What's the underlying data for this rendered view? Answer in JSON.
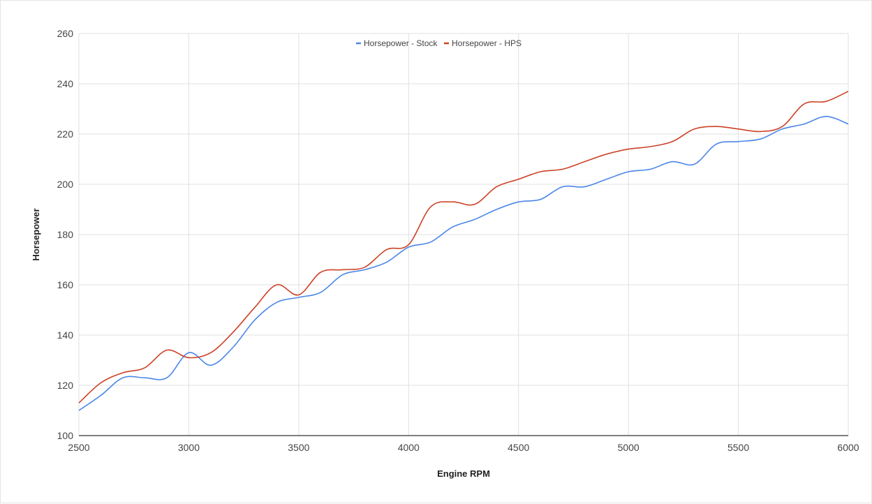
{
  "chart_data": {
    "type": "line",
    "xlabel": "Engine RPM",
    "ylabel": "Horsepower",
    "xlim": [
      2500,
      6000
    ],
    "ylim": [
      100,
      260
    ],
    "xticks": [
      2500,
      3000,
      3500,
      4000,
      4500,
      5000,
      5500,
      6000
    ],
    "yticks": [
      100,
      120,
      140,
      160,
      180,
      200,
      220,
      240,
      260
    ],
    "grid": true,
    "legend_position": "top-center",
    "x": [
      2500,
      2600,
      2700,
      2800,
      2900,
      3000,
      3100,
      3200,
      3300,
      3400,
      3500,
      3600,
      3700,
      3800,
      3900,
      4000,
      4100,
      4200,
      4300,
      4400,
      4500,
      4600,
      4700,
      4800,
      4900,
      5000,
      5100,
      5200,
      5300,
      5400,
      5500,
      5600,
      5700,
      5800,
      5900,
      6000
    ],
    "series": [
      {
        "name": "Horsepower - Stock",
        "color": "#4a86e8",
        "values": [
          110,
          116,
          123,
          123,
          123,
          133,
          128,
          135,
          146,
          153,
          155,
          157,
          164,
          166,
          169,
          175,
          177,
          183,
          186,
          190,
          193,
          194,
          199,
          199,
          202,
          205,
          206,
          209,
          208,
          216,
          217,
          218,
          222,
          224,
          227,
          224
        ]
      },
      {
        "name": "Horsepower - HPS",
        "color": "#cc4125",
        "values": [
          113,
          121,
          125,
          127,
          134,
          131,
          133,
          141,
          151,
          160,
          156,
          165,
          166,
          167,
          174,
          176,
          191,
          193,
          192,
          199,
          202,
          205,
          206,
          209,
          212,
          214,
          215,
          217,
          222,
          223,
          222,
          221,
          223,
          232,
          233,
          237
        ]
      }
    ]
  }
}
